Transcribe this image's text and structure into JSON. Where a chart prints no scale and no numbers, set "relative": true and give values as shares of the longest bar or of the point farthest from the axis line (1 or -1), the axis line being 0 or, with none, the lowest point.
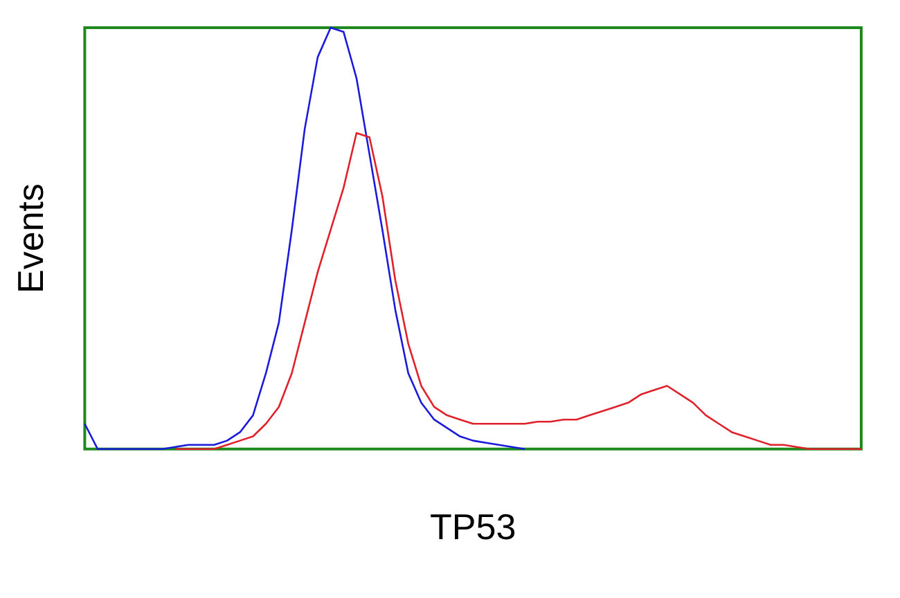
{
  "chart_data": {
    "type": "line",
    "relative": true,
    "xlabel": "TP53",
    "ylabel": "Events",
    "grid": false,
    "legend": false,
    "marker": "none",
    "line_style": "solid",
    "categories": [
      null,
      null,
      null,
      null,
      null,
      null,
      null,
      null,
      null,
      null,
      null,
      null,
      null,
      null,
      null,
      null,
      null,
      null,
      null,
      null,
      null,
      null,
      null,
      null,
      null,
      null,
      null,
      null,
      null,
      null,
      null,
      null,
      null,
      null,
      null,
      null,
      null,
      null,
      null,
      null,
      null,
      null,
      null,
      null,
      null,
      null,
      null,
      null,
      null,
      null,
      null,
      null,
      null,
      null,
      null,
      null,
      null,
      null,
      null,
      null,
      null
    ],
    "series": [
      {
        "color": "#e0202a",
        "values": [
          null,
          null,
          null,
          null,
          null,
          null,
          null,
          0,
          0,
          0,
          0,
          0.01,
          0.02,
          0.03,
          0.06,
          0.1,
          0.18,
          0.3,
          0.42,
          0.52,
          0.62,
          0.75,
          0.74,
          0.6,
          0.4,
          0.25,
          0.15,
          0.1,
          0.08,
          0.07,
          0.06,
          0.06,
          0.06,
          0.06,
          0.06,
          0.065,
          0.065,
          0.07,
          0.07,
          0.08,
          0.09,
          0.1,
          0.11,
          0.13,
          0.14,
          0.15,
          0.13,
          0.11,
          0.08,
          0.06,
          0.04,
          0.03,
          0.02,
          0.01,
          0.01,
          0.005,
          0,
          0,
          0,
          0,
          0
        ]
      },
      {
        "color": "#1a1adb",
        "values": [
          0.06,
          0,
          0,
          0,
          0,
          0,
          0,
          0.005,
          0.01,
          0.01,
          0.01,
          0.02,
          0.04,
          0.08,
          0.18,
          0.3,
          0.52,
          0.76,
          0.93,
          1,
          0.99,
          0.88,
          0.7,
          0.52,
          0.33,
          0.18,
          0.11,
          0.07,
          0.05,
          0.03,
          0.02,
          0.015,
          0.01,
          0.005,
          0,
          null,
          null,
          null,
          null,
          null,
          null,
          null,
          null,
          null,
          null,
          null,
          null,
          null,
          null,
          null,
          null,
          null,
          null,
          null,
          null,
          null,
          null,
          null,
          null,
          null,
          null
        ]
      }
    ]
  }
}
